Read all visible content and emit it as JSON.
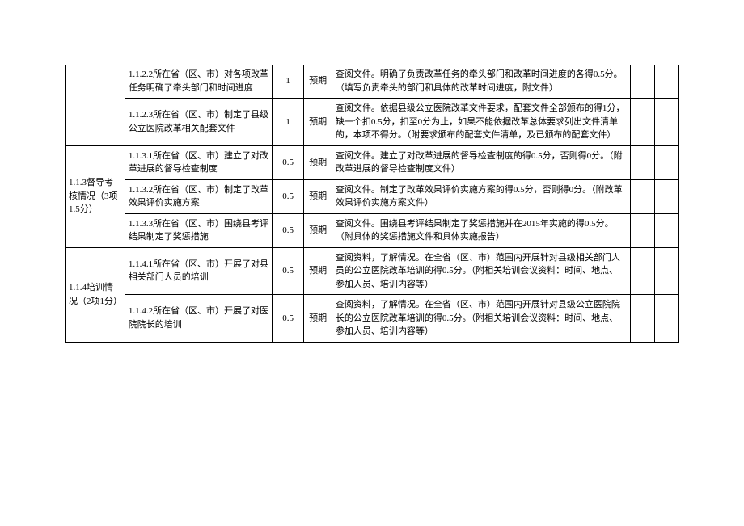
{
  "groups": [
    {
      "label": "",
      "rows": [
        {
          "col2": "1.1.2.2所在省（区、市）对各项改革任务明确了牵头部门和时间进度",
          "col3": "1",
          "col4": "预期",
          "col5": "查阅文件。明确了负责改革任务的牵头部门和改革时间进度的各得0.5分。（填写负责牵头的部门和具体的改革时间进度，附文件）"
        },
        {
          "col2": "1.1.2.3所在省（区、市）制定了县级公立医院改革相关配套文件",
          "col3": "1",
          "col4": "预期",
          "col5": "查阅文件。依据县级公立医院改革文件要求，配套文件全部颁布的得1分，缺一个扣0.5分，扣至0分为止，如果不能依据改革总体要求列出文件清单的，本项不得分。（附要求颁布的配套文件清单，及已颁布的配套文件）"
        }
      ]
    },
    {
      "label": "1.1.3督导考核情况（3项1.5分）",
      "rows": [
        {
          "col2": "1.1.3.1所在省（区、市）建立了对改革进展的督导检查制度",
          "col3": "0.5",
          "col4": "预期",
          "col5": "查阅文件。建立了对改革进展的督导检查制度的得0.5分，否则得0分。（附改革进展的督导检查制度文件）"
        },
        {
          "col2": "1.1.3.2所在省（区、市）制定了改革效果评价实施方案",
          "col3": "0.5",
          "col4": "预期",
          "col5": "查阅文件。制定了改革效果评价实施方案的得0.5分，否则得0分。（附改革效果评价实施方案文件）"
        },
        {
          "col2": "1.1.3.3所在省（区、市）围绕县考评结果制定了奖惩措施",
          "col3": "0.5",
          "col4": "预期",
          "col5": "查阅文件。围绕县考评结果制定了奖惩措施并在2015年实施的得0.5分。（附具体的奖惩措施文件和具体实施报告）"
        }
      ]
    },
    {
      "label": "1.1.4培训情况（2项1分）",
      "rows": [
        {
          "col2": "1.1.4.1所在省（区、市）开展了对县相关部门人员的培训",
          "col3": "0.5",
          "col4": "预期",
          "col5": "查阅资料，了解情况。在全省（区、市）范围内开展针对县级相关部门人员的公立医院改革培训的得0.5分。（附相关培训会议资料：时间、地点、参加人员、培训内容等）"
        },
        {
          "col2": "1.1.4.2所在省（区、市）开展了对医院院长的培训",
          "col3": "0.5",
          "col4": "预期",
          "col5": "查阅资料，了解情况。在全省（区、市）范围内开展针对县级公立医院院长的公立医院改革培训的得0.5分。（附相关培训会议资料：时间、地点、参加人员、培训内容等）"
        }
      ]
    }
  ]
}
